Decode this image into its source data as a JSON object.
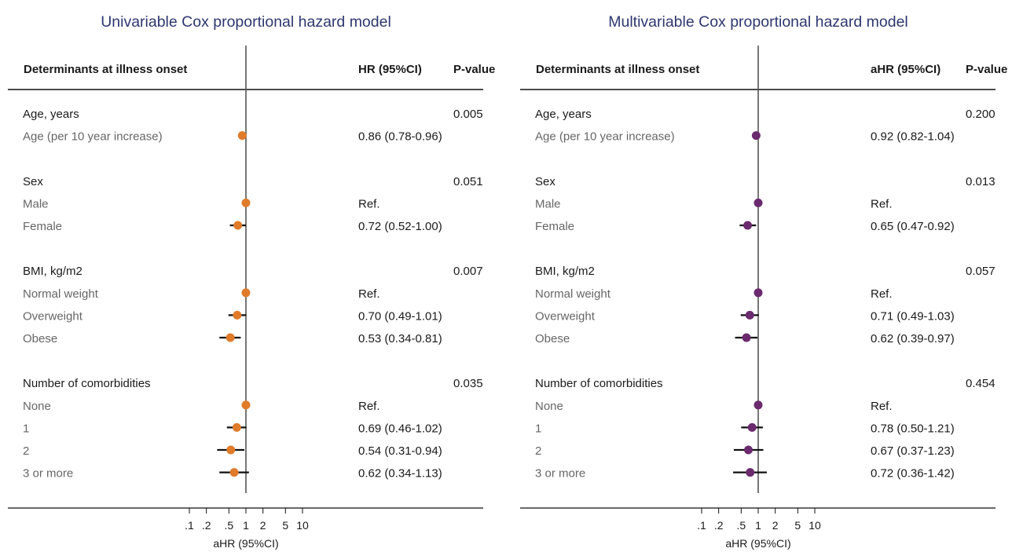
{
  "chart_data": [
    {
      "type": "forest",
      "title": "Univariable Cox proportional hazard model",
      "header_determinants": "Determinants at illness onset",
      "header_estimate": "HR (95%CI)",
      "header_pvalue": "P-value",
      "xlabel": "aHR (95%CI)",
      "x_scale": "log",
      "reference_value": 1,
      "x_ticks": [
        0.1,
        0.2,
        0.5,
        1,
        2,
        5,
        10
      ],
      "x_tick_labels": [
        ".1",
        ".2",
        ".5",
        "1",
        "2",
        "5",
        "10"
      ],
      "marker_color": "#e07b2a",
      "rows": [
        {
          "label": "Age, years",
          "kind": "group",
          "pvalue": "0.005"
        },
        {
          "label": "Age (per 10 year increase)",
          "kind": "item",
          "estimate": 0.86,
          "ci": [
            0.78,
            0.96
          ],
          "text": "0.86 (0.78-0.96)"
        },
        {
          "kind": "spacer"
        },
        {
          "label": "Sex",
          "kind": "group",
          "pvalue": "0.051"
        },
        {
          "label": "Male",
          "kind": "item",
          "estimate": 1,
          "ci": null,
          "text": "Ref."
        },
        {
          "label": "Female",
          "kind": "item",
          "estimate": 0.72,
          "ci": [
            0.52,
            1.0
          ],
          "text": "0.72 (0.52-1.00)"
        },
        {
          "kind": "spacer"
        },
        {
          "label": "BMI, kg/m2",
          "kind": "group",
          "pvalue": "0.007"
        },
        {
          "label": "Normal weight",
          "kind": "item",
          "estimate": 1,
          "ci": null,
          "text": "Ref."
        },
        {
          "label": "Overweight",
          "kind": "item",
          "estimate": 0.7,
          "ci": [
            0.49,
            1.01
          ],
          "text": "0.70 (0.49-1.01)"
        },
        {
          "label": "Obese",
          "kind": "item",
          "estimate": 0.53,
          "ci": [
            0.34,
            0.81
          ],
          "text": "0.53 (0.34-0.81)"
        },
        {
          "kind": "spacer"
        },
        {
          "label": "Number of comorbidities",
          "kind": "group",
          "pvalue": "0.035"
        },
        {
          "label": "None",
          "kind": "item",
          "estimate": 1,
          "ci": null,
          "text": "Ref."
        },
        {
          "label": "1",
          "kind": "item",
          "estimate": 0.69,
          "ci": [
            0.46,
            1.02
          ],
          "text": "0.69 (0.46-1.02)"
        },
        {
          "label": "2",
          "kind": "item",
          "estimate": 0.54,
          "ci": [
            0.31,
            0.94
          ],
          "text": "0.54 (0.31-0.94)"
        },
        {
          "label": "3 or more",
          "kind": "item",
          "estimate": 0.62,
          "ci": [
            0.34,
            1.13
          ],
          "text": "0.62 (0.34-1.13)"
        }
      ]
    },
    {
      "type": "forest",
      "title": "Multivariable Cox proportional hazard model",
      "header_determinants": "Determinants at illness onset",
      "header_estimate": "aHR (95%CI)",
      "header_pvalue": "P-value",
      "xlabel": "aHR (95%CI)",
      "x_scale": "log",
      "reference_value": 1,
      "x_ticks": [
        0.1,
        0.2,
        0.5,
        1,
        2,
        5,
        10
      ],
      "x_tick_labels": [
        ".1",
        ".2",
        ".5",
        "1",
        "2",
        "5",
        "10"
      ],
      "marker_color": "#6b2a6e",
      "rows": [
        {
          "label": "Age, years",
          "kind": "group",
          "pvalue": "0.200"
        },
        {
          "label": "Age (per 10 year increase)",
          "kind": "item",
          "estimate": 0.92,
          "ci": [
            0.82,
            1.04
          ],
          "text": "0.92 (0.82-1.04)"
        },
        {
          "kind": "spacer"
        },
        {
          "label": "Sex",
          "kind": "group",
          "pvalue": "0.013"
        },
        {
          "label": "Male",
          "kind": "item",
          "estimate": 1,
          "ci": null,
          "text": "Ref."
        },
        {
          "label": "Female",
          "kind": "item",
          "estimate": 0.65,
          "ci": [
            0.47,
            0.92
          ],
          "text": "0.65 (0.47-0.92)"
        },
        {
          "kind": "spacer"
        },
        {
          "label": "BMI, kg/m2",
          "kind": "group",
          "pvalue": "0.057"
        },
        {
          "label": "Normal weight",
          "kind": "item",
          "estimate": 1,
          "ci": null,
          "text": "Ref."
        },
        {
          "label": "Overweight",
          "kind": "item",
          "estimate": 0.71,
          "ci": [
            0.49,
            1.03
          ],
          "text": "0.71 (0.49-1.03)"
        },
        {
          "label": "Obese",
          "kind": "item",
          "estimate": 0.62,
          "ci": [
            0.39,
            0.97
          ],
          "text": "0.62 (0.39-0.97)"
        },
        {
          "kind": "spacer"
        },
        {
          "label": "Number of comorbidities",
          "kind": "group",
          "pvalue": "0.454"
        },
        {
          "label": "None",
          "kind": "item",
          "estimate": 1,
          "ci": null,
          "text": "Ref."
        },
        {
          "label": "1",
          "kind": "item",
          "estimate": 0.78,
          "ci": [
            0.5,
            1.21
          ],
          "text": "0.78 (0.50-1.21)"
        },
        {
          "label": "2",
          "kind": "item",
          "estimate": 0.67,
          "ci": [
            0.37,
            1.23
          ],
          "text": "0.67 (0.37-1.23)"
        },
        {
          "label": "3 or more",
          "kind": "item",
          "estimate": 0.72,
          "ci": [
            0.36,
            1.42
          ],
          "text": "0.72 (0.36-1.42)"
        }
      ]
    }
  ]
}
